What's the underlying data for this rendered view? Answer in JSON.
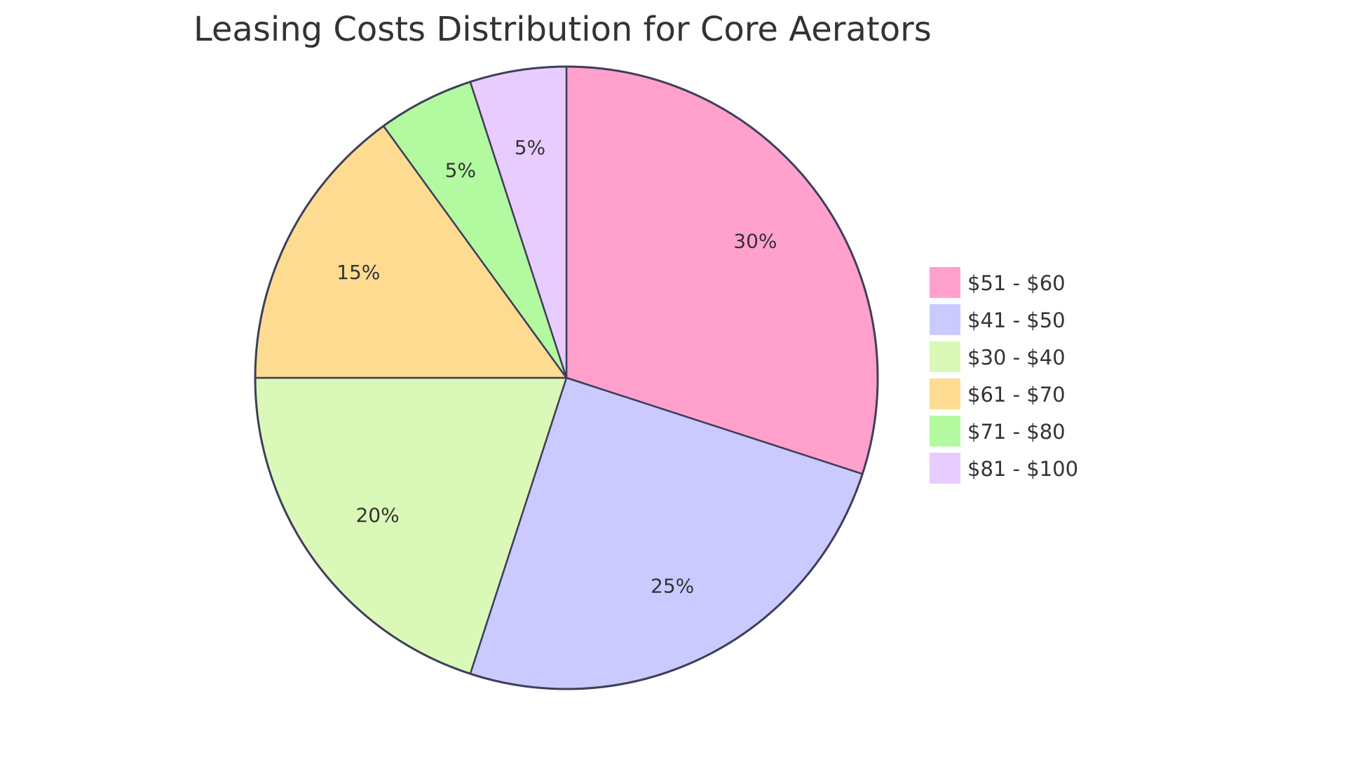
{
  "chart_data": {
    "type": "pie",
    "title": "Leasing Costs Distribution for Core Aerators",
    "slices": [
      {
        "label": "$51 - $60",
        "value": 30,
        "display": "30%",
        "color": "#FFA1CC"
      },
      {
        "label": "$41 - $50",
        "value": 25,
        "display": "25%",
        "color": "#CACAFF"
      },
      {
        "label": "$30 - $40",
        "value": 20,
        "display": "20%",
        "color": "#DAF9B8"
      },
      {
        "label": "$61 - $70",
        "value": 15,
        "display": "15%",
        "color": "#FDDC92"
      },
      {
        "label": "$71 - $80",
        "value": 5,
        "display": "5%",
        "color": "#B2F9A0"
      },
      {
        "label": "$81 - $100",
        "value": 5,
        "display": "5%",
        "color": "#E8CCFF"
      }
    ],
    "stroke_color": "#3F3F5A",
    "legend_position": "right"
  }
}
